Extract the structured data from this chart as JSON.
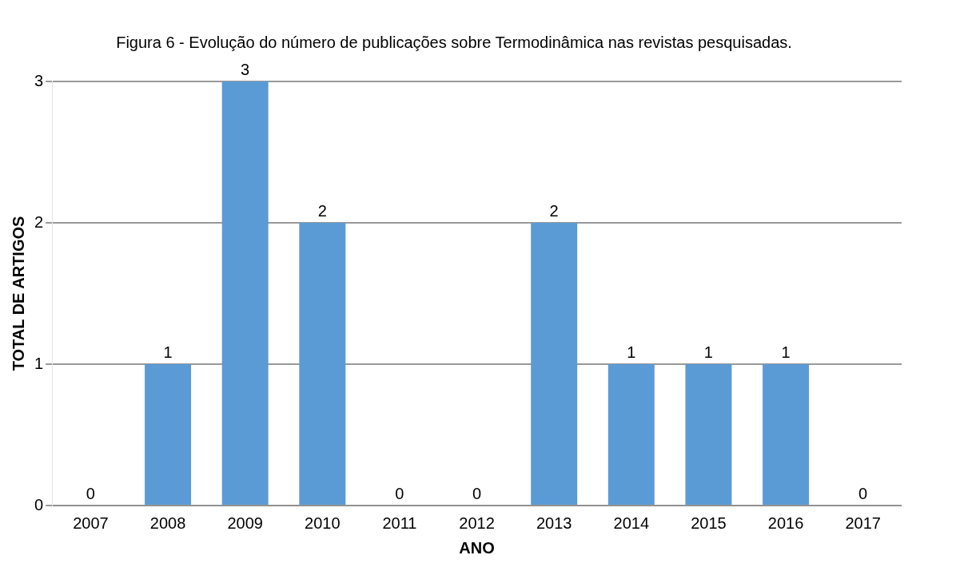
{
  "chart_data": {
    "type": "bar",
    "title": "Figura 6 - Evolução do número de publicações sobre Termodinâmica nas revistas pesquisadas.",
    "xlabel": "ANO",
    "ylabel": "TOTAL DE ARTIGOS",
    "categories": [
      "2007",
      "2008",
      "2009",
      "2010",
      "2011",
      "2012",
      "2013",
      "2014",
      "2015",
      "2016",
      "2017"
    ],
    "values": [
      0,
      1,
      3,
      2,
      0,
      0,
      2,
      1,
      1,
      1,
      0
    ],
    "color": "#5b9bd5",
    "ylim": [
      0,
      3
    ],
    "yticks": [
      0,
      1,
      2,
      3
    ],
    "grid": "y",
    "data_labels": true,
    "legend": false
  }
}
